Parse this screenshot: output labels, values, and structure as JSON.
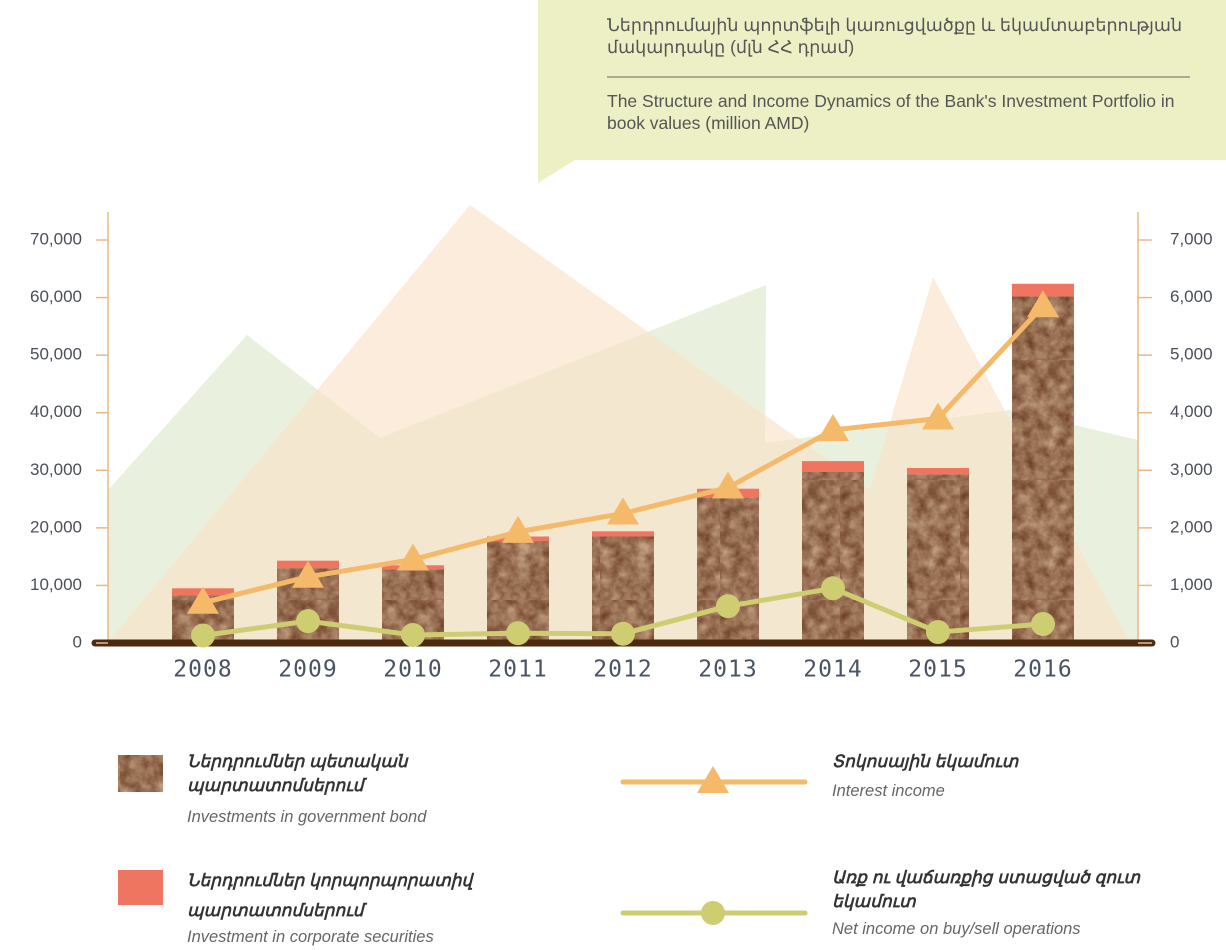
{
  "chart_data": {
    "type": "bar",
    "title": "Ներդրումային պորտֆելի կառուցվածքը և եկամտաբերության մակարդակը (մլն ՀՀ դրամ)",
    "subtitle": "The Structure and Income Dynamics of the Bank's Investment Portfolio in book values (million AMD)",
    "categories": [
      "2008",
      "2009",
      "2010",
      "2011",
      "2012",
      "2013",
      "2014",
      "2015",
      "2016"
    ],
    "series": [
      {
        "name": "Ներդրումներ պետական պարտատոմսերում",
        "name_en": "Investments in government bond",
        "type": "bar",
        "color": "#8b5a3c",
        "values": [
          8300,
          13000,
          12800,
          17700,
          18500,
          25300,
          29700,
          29300,
          60200
        ]
      },
      {
        "name": "Ներդրումներ կորպորպորատիվ պարտատոմսերում",
        "name_en": "Investment in corporate securities",
        "type": "bar",
        "color": "#f07560",
        "values": [
          1200,
          1300,
          700,
          800,
          900,
          1500,
          1900,
          1100,
          2200
        ]
      },
      {
        "name": "Տոկոսային եկամուտ",
        "name_en": "Interest income",
        "type": "line",
        "marker": "triangle",
        "axis": "y2",
        "color": "#f5b96a",
        "values": [
          700,
          1150,
          1450,
          1930,
          2250,
          2700,
          3700,
          3900,
          5850
        ]
      },
      {
        "name": "Առք ու վաճառքից ստացված զուտ եկամուտ",
        "name_en": "Net income on buy/sell operations",
        "type": "line",
        "marker": "circle",
        "axis": "y2",
        "color": "#cfcd72",
        "values": [
          130,
          380,
          140,
          170,
          160,
          640,
          950,
          190,
          330
        ]
      }
    ],
    "stacked": true,
    "ylim": [
      0,
      70000
    ],
    "yticks": [
      0,
      {
        "value": 10000,
        "label": "10,000"
      },
      {
        "value": 20000,
        "label": "20,000"
      },
      {
        "value": 30000,
        "label": "30,000"
      },
      {
        "value": 40000,
        "label": "40,000"
      },
      {
        "value": 50000,
        "label": "50,000"
      },
      {
        "value": 60000,
        "label": "60,000"
      },
      {
        "value": 70000,
        "label": "70,000"
      }
    ],
    "y2lim": [
      0,
      7000
    ],
    "y2ticks": [
      0,
      {
        "value": 1000,
        "label": "1,000"
      },
      {
        "value": 2000,
        "label": "2,000"
      },
      {
        "value": 3000,
        "label": "3,000"
      },
      {
        "value": 4000,
        "label": "4,000"
      },
      {
        "value": 5000,
        "label": "5,000"
      },
      {
        "value": 6000,
        "label": "6,000"
      },
      {
        "value": 7000,
        "label": "7,000"
      }
    ],
    "grid": false
  }
}
